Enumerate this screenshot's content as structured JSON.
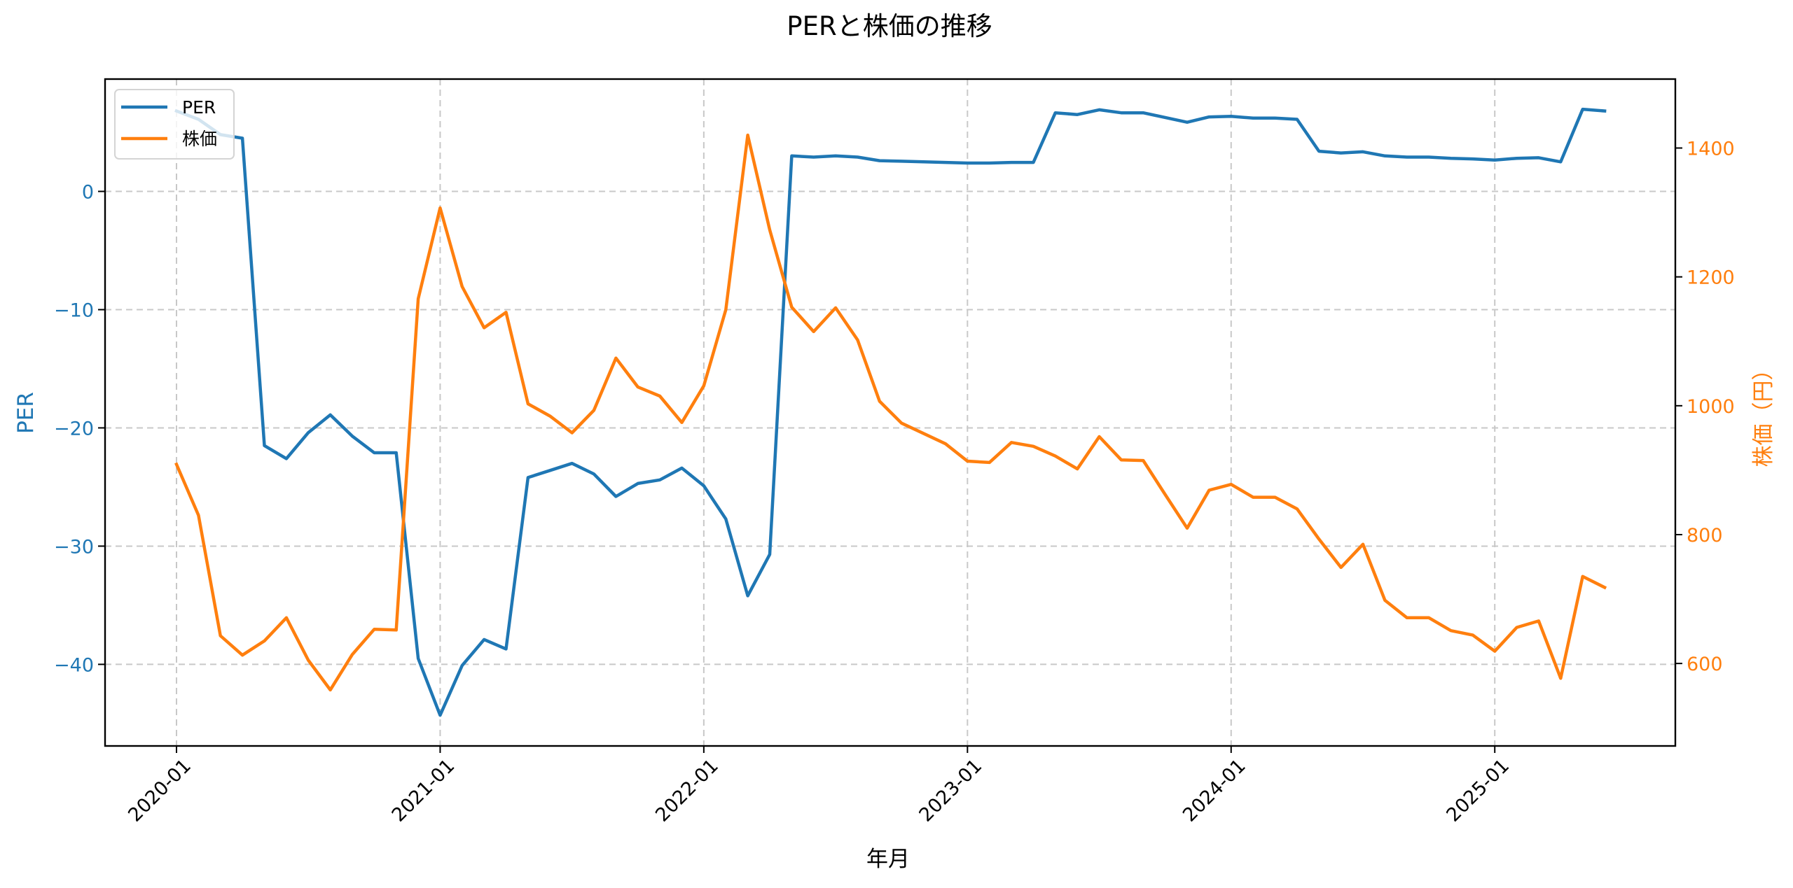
{
  "figure": {
    "title": "PERと株価の推移",
    "xlabel": "年月",
    "ylabel_left": "PER",
    "ylabel_right": "株価（円）",
    "legend": [
      {
        "label": "PER",
        "color": "#1f77b4"
      },
      {
        "label": "株価",
        "color": "#ff7f0e"
      }
    ],
    "colors": {
      "per": "#1f77b4",
      "price": "#ff7f0e",
      "grid": "#c8c8c8",
      "axes": "#000000"
    }
  },
  "chart_data": {
    "type": "line",
    "title": "PERと株価の推移",
    "xlabel": "年月",
    "ylabel": "PER",
    "ylabel_secondary": "株価（円）",
    "grid": true,
    "legend_position": "upper left",
    "x_tick_labels": [
      "2020-01",
      "2021-01",
      "2022-01",
      "2023-01",
      "2024-01",
      "2025-01"
    ],
    "y_ticks_left": [
      0,
      -10,
      -20,
      -30,
      -40
    ],
    "y_ticks_right": [
      600,
      800,
      1000,
      1200,
      1400
    ],
    "ylim_left": [
      -46.9,
      9.5
    ],
    "ylim_right": [
      472,
      1507
    ],
    "x": [
      "2020-01",
      "2020-02",
      "2020-03",
      "2020-04",
      "2020-05",
      "2020-06",
      "2020-07",
      "2020-08",
      "2020-09",
      "2020-10",
      "2020-11",
      "2020-12",
      "2021-01",
      "2021-02",
      "2021-03",
      "2021-04",
      "2021-05",
      "2021-06",
      "2021-07",
      "2021-08",
      "2021-09",
      "2021-10",
      "2021-11",
      "2021-12",
      "2022-01",
      "2022-02",
      "2022-03",
      "2022-04",
      "2022-05",
      "2022-06",
      "2022-07",
      "2022-08",
      "2022-09",
      "2022-10",
      "2022-11",
      "2022-12",
      "2023-01",
      "2023-02",
      "2023-03",
      "2023-04",
      "2023-05",
      "2023-06",
      "2023-07",
      "2023-08",
      "2023-09",
      "2023-10",
      "2023-11",
      "2023-12",
      "2024-01",
      "2024-02",
      "2024-03",
      "2024-04",
      "2024-05",
      "2024-06",
      "2024-07",
      "2024-08",
      "2024-09",
      "2024-10",
      "2024-11",
      "2024-12",
      "2025-01",
      "2025-02",
      "2025-03",
      "2025-04",
      "2025-05",
      "2025-06"
    ],
    "series": [
      {
        "name": "PER",
        "axis": "left",
        "color": "#1f77b4",
        "values": [
          6.8,
          6.1,
          4.8,
          4.5,
          -21.5,
          -22.6,
          -20.4,
          -18.9,
          -20.7,
          -22.1,
          -22.1,
          -39.5,
          -44.3,
          -40.1,
          -37.9,
          -38.7,
          -24.2,
          -23.6,
          -23.0,
          -23.9,
          -25.8,
          -24.7,
          -24.4,
          -23.4,
          -24.9,
          -27.7,
          -34.2,
          -30.7,
          3.0,
          2.9,
          3.0,
          2.9,
          2.6,
          2.55,
          2.5,
          2.45,
          2.4,
          2.4,
          2.45,
          2.45,
          6.65,
          6.5,
          6.9,
          6.65,
          6.65,
          6.25,
          5.85,
          6.3,
          6.35,
          6.2,
          6.2,
          6.1,
          3.4,
          3.25,
          3.35,
          3.0,
          2.9,
          2.9,
          2.8,
          2.75,
          2.65,
          2.8,
          2.85,
          2.5,
          6.95,
          6.8
        ]
      },
      {
        "name": "株価",
        "axis": "right",
        "color": "#ff7f0e",
        "values": [
          909,
          830,
          643,
          613,
          635,
          671,
          605,
          559,
          614,
          653,
          652,
          1166,
          1307,
          1185,
          1121,
          1145,
          1003,
          984,
          958,
          993,
          1074,
          1029,
          1015,
          974,
          1031,
          1149,
          1420,
          1273,
          1153,
          1115,
          1152,
          1102,
          1007,
          973,
          957,
          941,
          914,
          912,
          943,
          937,
          922,
          902,
          952,
          916,
          915,
          862,
          810,
          869,
          878,
          858,
          858,
          840,
          793,
          749,
          785,
          698,
          671,
          671,
          651,
          644,
          619,
          656,
          666,
          577,
          735,
          718
        ]
      }
    ]
  }
}
